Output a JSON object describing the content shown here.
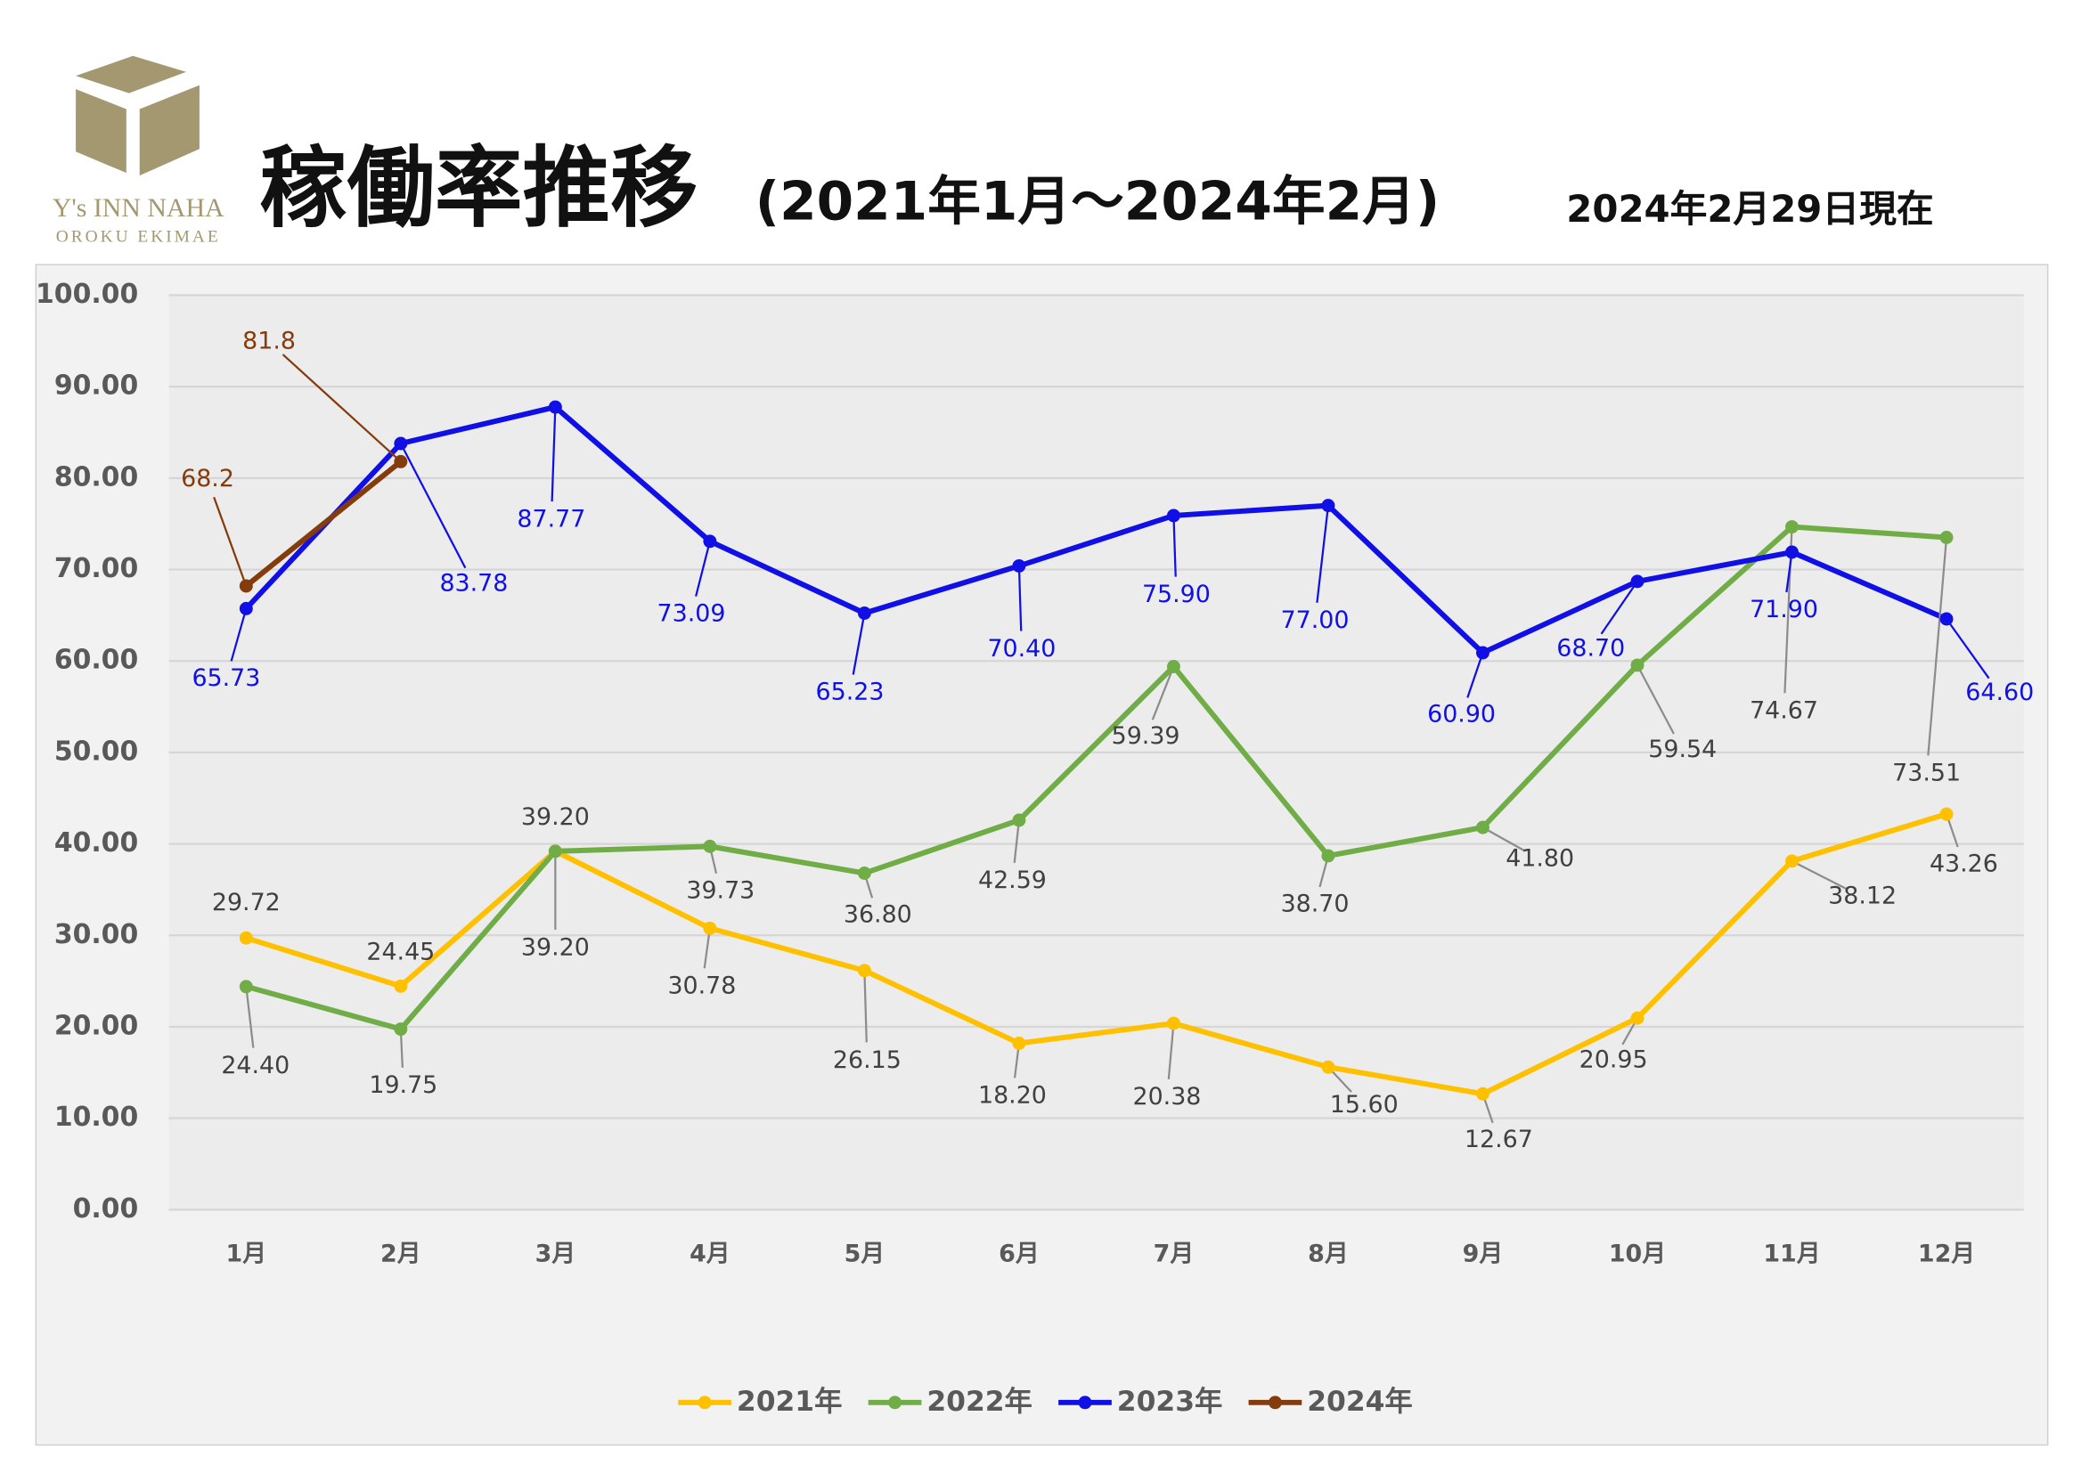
{
  "logo": {
    "name": "Y's INN NAHA",
    "subname": "OROKU EKIMAE"
  },
  "chart_data": {
    "type": "line",
    "title": "稼働率推移",
    "subtitle": "(2021年1月～2024年2月)",
    "note": "2024年2月29日現在",
    "categories": [
      "1月",
      "2月",
      "3月",
      "4月",
      "5月",
      "6月",
      "7月",
      "8月",
      "9月",
      "10月",
      "11月",
      "12月"
    ],
    "ylim": [
      0,
      100
    ],
    "yticks": [
      {
        "value": 0,
        "label": "0.00"
      },
      {
        "value": 10,
        "label": "10.00"
      },
      {
        "value": 20,
        "label": "20.00"
      },
      {
        "value": 30,
        "label": "30.00"
      },
      {
        "value": 40,
        "label": "40.00"
      },
      {
        "value": 50,
        "label": "50.00"
      },
      {
        "value": 60,
        "label": "60.00"
      },
      {
        "value": 70,
        "label": "70.00"
      },
      {
        "value": 80,
        "label": "80.00"
      },
      {
        "value": 90,
        "label": "90.00"
      },
      {
        "value": 100,
        "label": "100.00"
      }
    ],
    "grid": true,
    "legend": "bottom",
    "series": [
      {
        "name": "2021年",
        "color": "#ffc000",
        "values": [
          29.72,
          24.45,
          39.2,
          30.78,
          26.15,
          18.2,
          20.38,
          15.6,
          12.67,
          20.95,
          38.12,
          43.26
        ],
        "value_labels": [
          "29.72",
          "24.45",
          "39.20",
          "30.78",
          "26.15",
          "18.20",
          "20.38",
          "15.60",
          "12.67",
          "20.95",
          "38.12",
          "43.26"
        ]
      },
      {
        "name": "2022年",
        "color": "#70ad47",
        "values": [
          24.4,
          19.75,
          39.2,
          39.73,
          36.8,
          42.59,
          59.39,
          38.7,
          41.8,
          59.54,
          74.67,
          73.51
        ],
        "value_labels": [
          "24.40",
          "19.75",
          "39.20",
          "39.73",
          "36.80",
          "42.59",
          "59.39",
          "38.70",
          "41.80",
          "59.54",
          "74.67",
          "73.51"
        ]
      },
      {
        "name": "2023年",
        "color": "#1010e6",
        "values": [
          65.73,
          83.78,
          87.77,
          73.09,
          65.23,
          70.4,
          75.9,
          77.0,
          60.9,
          68.7,
          71.9,
          64.6
        ],
        "value_labels": [
          "65.73",
          "83.78",
          "87.77",
          "73.09",
          "65.23",
          "70.40",
          "75.90",
          "77.00",
          "60.90",
          "68.70",
          "71.90",
          "64.60"
        ]
      },
      {
        "name": "2024年",
        "color": "#843c0c",
        "values": [
          68.2,
          81.8,
          null,
          null,
          null,
          null,
          null,
          null,
          null,
          null,
          null,
          null
        ],
        "value_labels": [
          "68.2",
          "81.8",
          null,
          null,
          null,
          null,
          null,
          null,
          null,
          null,
          null,
          null
        ]
      }
    ]
  }
}
